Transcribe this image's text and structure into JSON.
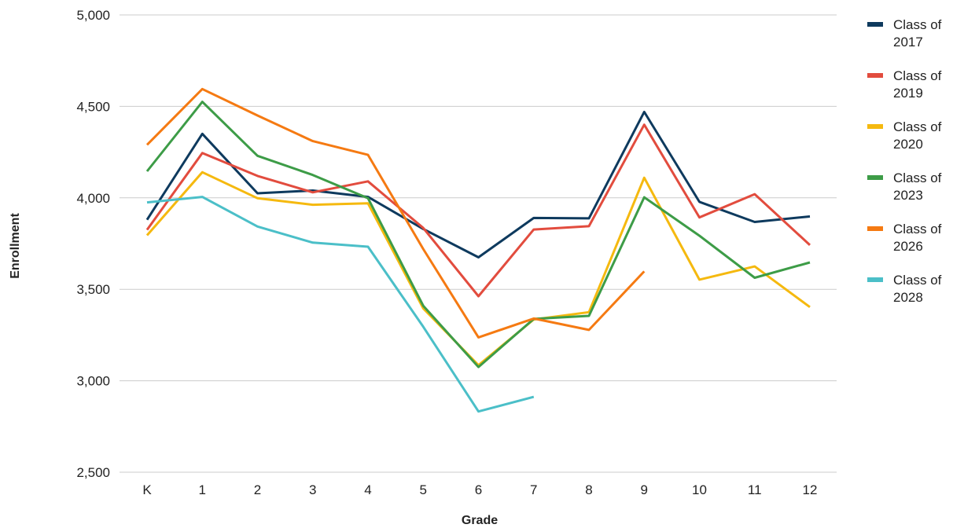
{
  "chart_data": {
    "type": "line",
    "title": "",
    "xlabel": "Grade",
    "ylabel": "Enrollment",
    "categories": [
      "K",
      "1",
      "2",
      "3",
      "4",
      "5",
      "6",
      "7",
      "8",
      "9",
      "10",
      "11",
      "12"
    ],
    "ylim": [
      2500,
      5000
    ],
    "yticks": [
      "2,500",
      "3,000",
      "3,500",
      "4,000",
      "4,500",
      "5,000"
    ],
    "grid": true,
    "legend_position": "right",
    "series": [
      {
        "name": "Class of 2017",
        "color": "#0e3a5e",
        "values": [
          3880,
          4350,
          4025,
          4040,
          4005,
          3830,
          3675,
          3890,
          3888,
          4470,
          3978,
          3868,
          3898
        ]
      },
      {
        "name": "Class of 2019",
        "color": "#e24c3e",
        "values": [
          3825,
          4245,
          4120,
          4030,
          4090,
          3835,
          3462,
          3827,
          3845,
          4400,
          3893,
          4020,
          3742
        ]
      },
      {
        "name": "Class of 2020",
        "color": "#f5b90f",
        "values": [
          3795,
          4140,
          3998,
          3962,
          3970,
          3395,
          3085,
          3335,
          3375,
          4110,
          3553,
          3625,
          3403
        ]
      },
      {
        "name": "Class of 2023",
        "color": "#3d9c47",
        "values": [
          4145,
          4525,
          4230,
          4125,
          3998,
          3410,
          3075,
          3338,
          3355,
          4003,
          3793,
          3563,
          3647
        ]
      },
      {
        "name": "Class of 2026",
        "color": "#f57a12",
        "values": [
          4290,
          4595,
          4450,
          4310,
          4235,
          3720,
          3237,
          3340,
          3278,
          3598,
          null,
          null,
          null
        ]
      },
      {
        "name": "Class of 2028",
        "color": "#4bbfc8",
        "values": [
          3975,
          4005,
          3843,
          3755,
          3733,
          3295,
          2832,
          2912,
          null,
          null,
          null,
          null,
          null
        ]
      }
    ]
  }
}
